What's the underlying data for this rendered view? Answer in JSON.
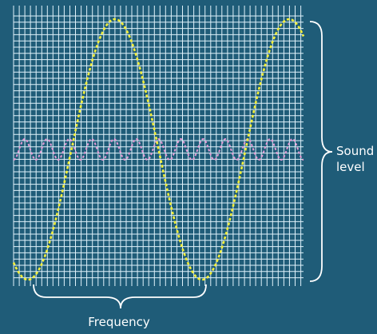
{
  "labels": {
    "sound_level_line1": "Sound",
    "sound_level_line2": "level",
    "frequency": "Frequency"
  },
  "colors": {
    "background": "#1f5c78",
    "grid": "#dff2fb",
    "loud_wave": "#f2ee3a",
    "quiet_wave": "#e49bd6",
    "text": "#ffffff"
  },
  "waves": {
    "loud": {
      "shown_cycles": 1.5,
      "relative_amplitude": 1.0
    },
    "quiet": {
      "shown_cycles": 13,
      "relative_amplitude": 0.08
    }
  }
}
